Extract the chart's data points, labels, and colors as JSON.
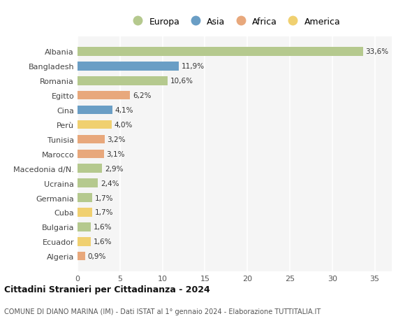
{
  "countries": [
    "Albania",
    "Bangladesh",
    "Romania",
    "Egitto",
    "Cina",
    "Perù",
    "Tunisia",
    "Marocco",
    "Macedonia d/N.",
    "Ucraina",
    "Germania",
    "Cuba",
    "Bulgaria",
    "Ecuador",
    "Algeria"
  ],
  "values": [
    33.6,
    11.9,
    10.6,
    6.2,
    4.1,
    4.0,
    3.2,
    3.1,
    2.9,
    2.4,
    1.7,
    1.7,
    1.6,
    1.6,
    0.9
  ],
  "labels": [
    "33,6%",
    "11,9%",
    "10,6%",
    "6,2%",
    "4,1%",
    "4,0%",
    "3,2%",
    "3,1%",
    "2,9%",
    "2,4%",
    "1,7%",
    "1,7%",
    "1,6%",
    "1,6%",
    "0,9%"
  ],
  "colors": [
    "#b5c98e",
    "#6a9ec5",
    "#b5c98e",
    "#e8a87c",
    "#6a9ec5",
    "#f0d070",
    "#e8a87c",
    "#e8a87c",
    "#b5c98e",
    "#b5c98e",
    "#b5c98e",
    "#f0d070",
    "#b5c98e",
    "#f0d070",
    "#e8a87c"
  ],
  "legend_labels": [
    "Europa",
    "Asia",
    "Africa",
    "America"
  ],
  "legend_colors": [
    "#b5c98e",
    "#6a9ec5",
    "#e8a87c",
    "#f0d070"
  ],
  "title1": "Cittadini Stranieri per Cittadinanza - 2024",
  "title2": "COMUNE DI DIANO MARINA (IM) - Dati ISTAT al 1° gennaio 2024 - Elaborazione TUTTITALIA.IT",
  "xlim": [
    0,
    37
  ],
  "xticks": [
    0,
    5,
    10,
    15,
    20,
    25,
    30,
    35
  ],
  "bg_color": "#ffffff",
  "plot_bg_color": "#f5f5f5",
  "grid_color": "#ffffff",
  "bar_height": 0.6
}
